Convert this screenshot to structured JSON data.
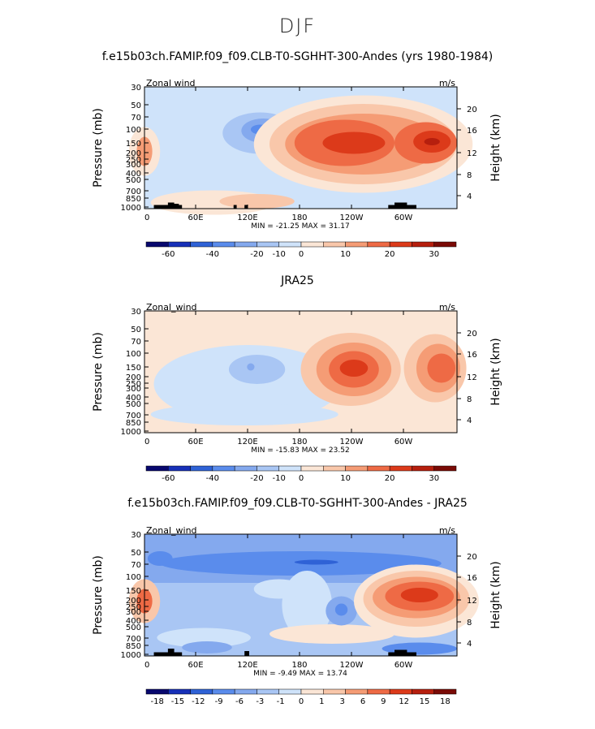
{
  "title": "DJF",
  "colors": {
    "scale": [
      "#08086e",
      "#1730b8",
      "#2f62d6",
      "#5a8cec",
      "#84a9ee",
      "#a9c6f4",
      "#cfe3fa",
      "#fbe6d6",
      "#f9c7aa",
      "#f59c75",
      "#ee6a45",
      "#dc3a1a",
      "#b61f0e",
      "#7a0a06"
    ],
    "terrain": "#000000"
  },
  "chart_data": [
    {
      "type": "heatmap",
      "title": "f.e15b03ch.FAMIP.f09_f09.CLB-T0-SGHHT-300-Andes (yrs 1980-1984)",
      "variable": "Zonal wind",
      "units": "m/s",
      "ylabel": "Pressure (mb)",
      "ylabel_right": "Height (km)",
      "yticks": [
        "30",
        "50",
        "70",
        "100",
        "150",
        "200",
        "250",
        "300",
        "400",
        "500",
        "700",
        "850",
        "1000"
      ],
      "yticks_right": [
        "20",
        "16",
        "12",
        "8",
        "4"
      ],
      "xticks": [
        "0",
        "60E",
        "120E",
        "180",
        "120W",
        "60W"
      ],
      "stats": "MIN = -21.25   MAX =  31.17",
      "colorbar_labels": [
        "-60",
        "-40",
        "-20",
        "-10",
        "0",
        "10",
        "20",
        "30"
      ],
      "min": -21.25,
      "max": 31.17
    },
    {
      "type": "heatmap",
      "title": "JRA25",
      "variable": "Zonal_wind",
      "units": "m/s",
      "ylabel": "Pressure (mb)",
      "ylabel_right": "Height (km)",
      "yticks": [
        "30",
        "50",
        "70",
        "100",
        "150",
        "200",
        "250",
        "300",
        "400",
        "500",
        "700",
        "850",
        "1000"
      ],
      "yticks_right": [
        "20",
        "16",
        "12",
        "8",
        "4"
      ],
      "xticks": [
        "0",
        "60E",
        "120E",
        "180",
        "120W",
        "60W"
      ],
      "stats": "MIN = -15.83   MAX =  23.52",
      "colorbar_labels": [
        "-60",
        "-40",
        "-20",
        "-10",
        "0",
        "10",
        "20",
        "30"
      ],
      "min": -15.83,
      "max": 23.52
    },
    {
      "type": "heatmap",
      "title": "f.e15b03ch.FAMIP.f09_f09.CLB-T0-SGHHT-300-Andes - JRA25",
      "variable": "Zonal_wind",
      "units": "m/s",
      "ylabel": "Pressure (mb)",
      "ylabel_right": "Height (km)",
      "yticks": [
        "30",
        "50",
        "70",
        "100",
        "150",
        "200",
        "250",
        "300",
        "400",
        "500",
        "700",
        "850",
        "1000"
      ],
      "yticks_right": [
        "20",
        "16",
        "12",
        "8",
        "4"
      ],
      "xticks": [
        "0",
        "60E",
        "120E",
        "180",
        "120W",
        "60W"
      ],
      "stats": "MIN =  -9.49   MAX =  13.74",
      "colorbar_labels": [
        "-18",
        "-15",
        "-12",
        "-9",
        "-6",
        "-3",
        "-1",
        "0",
        "1",
        "3",
        "6",
        "9",
        "12",
        "15",
        "18"
      ],
      "min": -9.49,
      "max": 13.74
    }
  ]
}
